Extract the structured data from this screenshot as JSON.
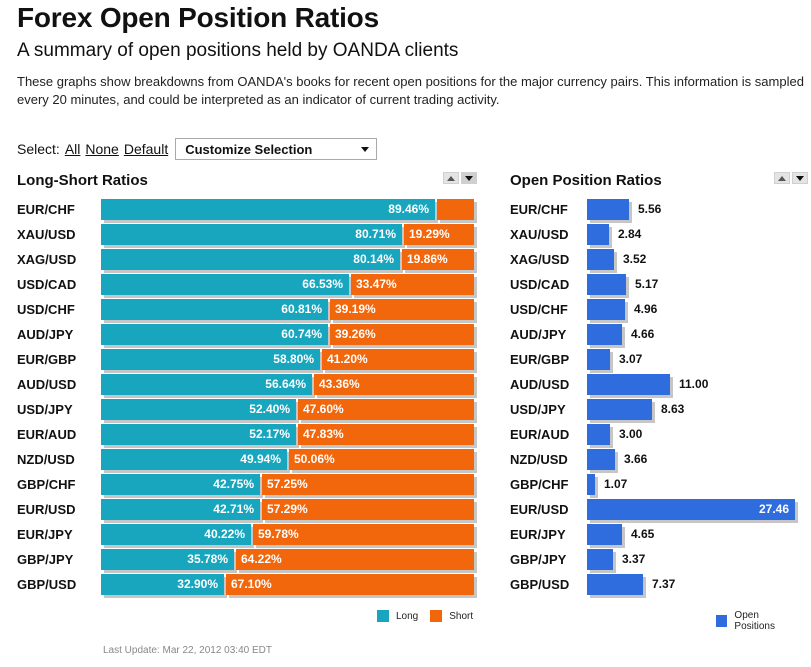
{
  "header": {
    "title": "Forex Open Position Ratios",
    "subtitle": "A summary of open positions held by OANDA clients",
    "description": "These graphs show breakdowns from OANDA's books for recent open positions for the major currency pairs. This information is sampled every 20 minutes, and could be interpreted as an indicator of current trading activity."
  },
  "select": {
    "label": "Select:",
    "all": "All",
    "none": "None",
    "default": "Default",
    "dropdown_value": "Customize Selection"
  },
  "colors": {
    "long": "#17a6be",
    "short": "#f2660c",
    "open": "#2f6cdd"
  },
  "chart_data": [
    {
      "type": "bar",
      "title": "Long-Short Ratios",
      "orientation": "horizontal",
      "stacked": true,
      "categories": [
        "EUR/CHF",
        "XAU/USD",
        "XAG/USD",
        "USD/CAD",
        "USD/CHF",
        "AUD/JPY",
        "EUR/GBP",
        "AUD/USD",
        "USD/JPY",
        "EUR/AUD",
        "NZD/USD",
        "GBP/CHF",
        "EUR/USD",
        "EUR/JPY",
        "GBP/JPY",
        "GBP/USD"
      ],
      "series": [
        {
          "name": "Long",
          "values": [
            89.46,
            80.71,
            80.14,
            66.53,
            60.81,
            60.74,
            58.8,
            56.64,
            52.4,
            52.17,
            49.94,
            42.75,
            42.71,
            40.22,
            35.78,
            32.9
          ]
        },
        {
          "name": "Short",
          "values": [
            10.54,
            19.29,
            19.86,
            33.47,
            39.19,
            39.26,
            41.2,
            43.36,
            47.6,
            47.83,
            50.06,
            57.25,
            57.29,
            59.78,
            64.22,
            67.1
          ]
        }
      ],
      "long_labels": [
        "89.46%",
        "80.71%",
        "80.14%",
        "66.53%",
        "60.81%",
        "60.74%",
        "58.80%",
        "56.64%",
        "52.40%",
        "52.17%",
        "49.94%",
        "42.75%",
        "42.71%",
        "40.22%",
        "35.78%",
        "32.90%"
      ],
      "short_labels": [
        "",
        "19.29%",
        "19.86%",
        "33.47%",
        "39.19%",
        "39.26%",
        "41.20%",
        "43.36%",
        "47.60%",
        "47.83%",
        "50.06%",
        "57.25%",
        "57.29%",
        "59.78%",
        "64.22%",
        "67.10%"
      ],
      "xlim": [
        0,
        100
      ],
      "legend": [
        "Long",
        "Short"
      ],
      "legend_position": "bottom-right"
    },
    {
      "type": "bar",
      "title": "Open Position Ratios",
      "orientation": "horizontal",
      "categories": [
        "EUR/CHF",
        "XAU/USD",
        "XAG/USD",
        "USD/CAD",
        "USD/CHF",
        "AUD/JPY",
        "EUR/GBP",
        "AUD/USD",
        "USD/JPY",
        "EUR/AUD",
        "NZD/USD",
        "GBP/CHF",
        "EUR/USD",
        "EUR/JPY",
        "GBP/JPY",
        "GBP/USD"
      ],
      "values": [
        5.56,
        2.84,
        3.52,
        5.17,
        4.96,
        4.66,
        3.07,
        11.0,
        8.63,
        3.0,
        3.66,
        1.07,
        27.46,
        4.65,
        3.37,
        7.37
      ],
      "value_labels": [
        "5.56",
        "2.84",
        "3.52",
        "5.17",
        "4.96",
        "4.66",
        "3.07",
        "11.00",
        "8.63",
        "3.00",
        "3.66",
        "1.07",
        "27.46",
        "4.65",
        "3.37",
        "7.37"
      ],
      "xlim": [
        0,
        27.46
      ],
      "legend": [
        "Open Positions"
      ],
      "legend_position": "bottom-right"
    }
  ],
  "footer": {
    "last_update": "Last Update: Mar 22, 2012 03:40 EDT"
  }
}
